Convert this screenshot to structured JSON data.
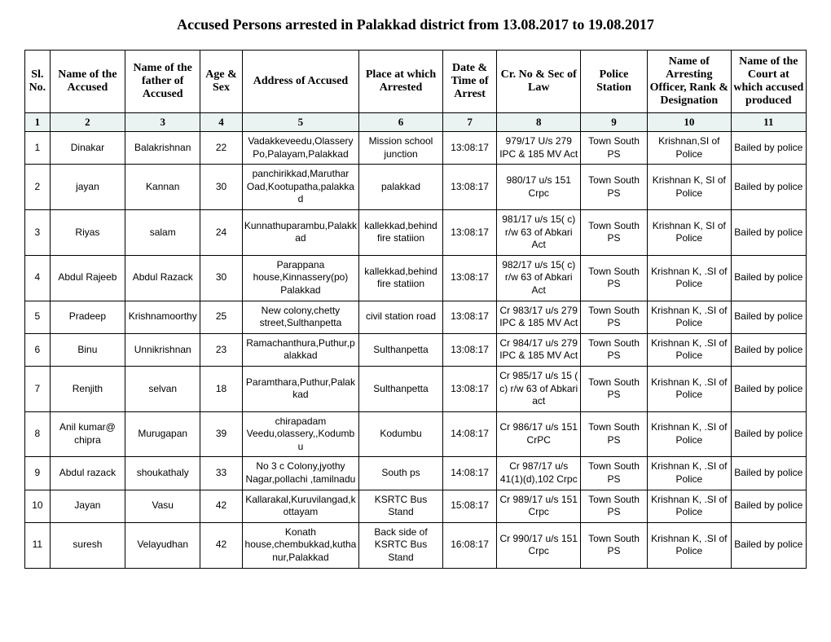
{
  "title": "Accused Persons arrested in  Palakkad  district from   13.08.2017 to 19.08.2017",
  "columns": [
    "Sl. No.",
    "Name of the Accused",
    "Name of the father of Accused",
    "Age & Sex",
    "Address of Accused",
    "Place at which Arrested",
    "Date & Time of Arrest",
    "Cr. No & Sec of Law",
    "Police Station",
    "Name of Arresting Officer, Rank & Designation",
    "Name of the Court at which accused produced"
  ],
  "numrow": [
    "1",
    "2",
    "3",
    "4",
    "5",
    "6",
    "7",
    "8",
    "9",
    "10",
    "11"
  ],
  "rows": [
    [
      "1",
      "Dinakar",
      "Balakrishnan",
      "22",
      "Vadakkeveedu,Olassery Po,Palayam,Palakkad",
      "Mission school junction",
      "13:08:17",
      "979/17 U/s 279 IPC & 185 MV Act",
      "Town South PS",
      "Krishnan,SI of Police",
      "Bailed by police"
    ],
    [
      "2",
      "jayan",
      "Kannan",
      "30",
      "panchirikkad,Maruthar Oad,Kootupatha,palakkad",
      "palakkad",
      "13:08:17",
      "980/17 u/s 151 Crpc",
      "Town South PS",
      "Krishnan K, SI of Police",
      "Bailed by police"
    ],
    [
      "3",
      "Riyas",
      "salam",
      "24",
      "Kunnathuparambu,Palakkad",
      "kallekkad,behind fire statiion",
      "13:08:17",
      "981/17 u/s 15( c) r/w 63 of Abkari Act",
      "Town South PS",
      "Krishnan K, SI of Police",
      "Bailed by police"
    ],
    [
      "4",
      "Abdul Rajeeb",
      "Abdul Razack",
      "30",
      "Parappana house,Kinnassery(po) Palakkad",
      "kallekkad,behind fire statiion",
      "13:08:17",
      "982/17 u/s 15( c) r/w 63 of Abkari Act",
      "Town South PS",
      "Krishnan K, .SI of Police",
      "Bailed by police"
    ],
    [
      "5",
      "Pradeep",
      "Krishnamoorthy",
      "25",
      "New colony,chetty street,Sulthanpetta",
      "civil station road",
      "13:08:17",
      "Cr 983/17 u/s 279 IPC & 185 MV Act",
      "Town South PS",
      "Krishnan K, .SI of Police",
      "Bailed by police"
    ],
    [
      "6",
      "Binu",
      "Unnikrishnan",
      "23",
      "Ramachanthura,Puthur,palakkad",
      "Sulthanpetta",
      "13:08:17",
      "Cr 984/17 u/s 279 IPC & 185 MV Act",
      "Town South PS",
      "Krishnan K, .SI of Police",
      "Bailed by police"
    ],
    [
      "7",
      "Renjith",
      "selvan",
      "18",
      "Paramthara,Puthur,Palakkad",
      "Sulthanpetta",
      "13:08:17",
      "Cr 985/17 u/s 15 ( c) r/w 63 of Abkari act",
      "Town South PS",
      "Krishnan K, .SI of Police",
      "Bailed by police"
    ],
    [
      "8",
      "Anil kumar@ chipra",
      "Murugapan",
      "39",
      "chirapadam Veedu,olassery,,Kodumbu",
      "Kodumbu",
      "14:08:17",
      "Cr 986/17 u/s 151 CrPC",
      "Town South PS",
      "Krishnan K, .SI of Police",
      "Bailed by police"
    ],
    [
      "9",
      "Abdul razack",
      "shoukathaly",
      "33",
      "No 3 c  Colony,jyothy Nagar,pollachi ,tamilnadu",
      "South ps",
      "14:08:17",
      "Cr 987/17 u/s 41(1)(d),102 Crpc",
      "Town South PS",
      "Krishnan K, .SI of Police",
      "Bailed by police"
    ],
    [
      "10",
      "Jayan",
      "Vasu",
      "42",
      "Kallarakal,Kuruvilangad,kottayam",
      "KSRTC Bus Stand",
      "15:08:17",
      "Cr 989/17 u/s 151 Crpc",
      "Town South PS",
      "Krishnan K, .SI of Police",
      "Bailed by police"
    ],
    [
      "11",
      "suresh",
      "Velayudhan",
      "42",
      "Konath house,chembukkad,kuthanur,Palakkad",
      "Back side of KSRTC Bus Stand",
      "16:08:17",
      "Cr 990/17 u/s 151 Crpc",
      "Town South PS",
      "Krishnan K, .SI of Police",
      "Bailed by police"
    ]
  ]
}
